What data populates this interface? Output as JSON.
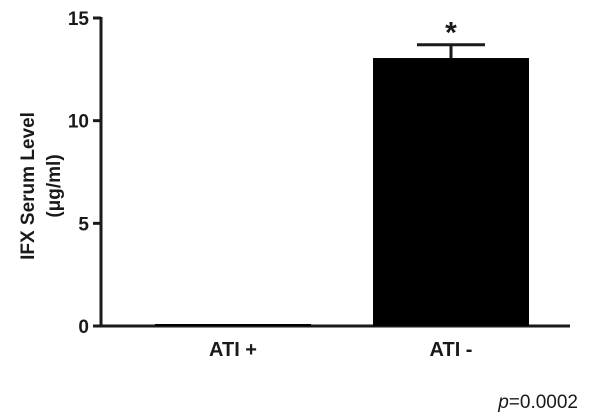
{
  "chart_data": {
    "type": "bar",
    "categories": [
      "ATI +",
      "ATI -"
    ],
    "values": [
      0.05,
      13.05
    ],
    "errors": [
      0,
      0.65
    ],
    "ylabel_line1": "IFX Serum Level",
    "ylabel_line2": "(μg/ml)",
    "ylim": [
      0,
      15
    ],
    "yticks": [
      0,
      5,
      10,
      15
    ],
    "ytick_labels": [
      "0",
      "5",
      "10",
      "15"
    ],
    "annotations": [
      "",
      "*"
    ],
    "bar_color": "#000000",
    "grid": false
  },
  "footnote": {
    "p_symbol": "p",
    "p_value": "=0.0002"
  }
}
